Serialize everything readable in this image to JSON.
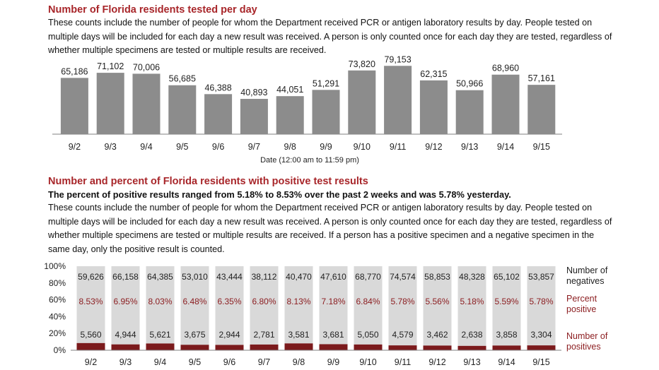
{
  "section1": {
    "title": "Number of Florida residents tested per day",
    "description": "These counts include the number of people for whom the Department received PCR or antigen laboratory results by day. People tested on multiple days will be included for each day a new result was received. A person is only counted once for each day they are tested, regardless of whether multiple specimens are tested or multiple results are received."
  },
  "section2": {
    "title": "Number and percent of Florida residents with positive test results",
    "summary": "The percent of positive results ranged from 5.18% to 8.53% over the past 2 weeks and was 5.78% yesterday.",
    "description": "These counts include the number of people for whom the Department received PCR or antigen laboratory results by day. People tested on multiple days will be included for each day a new result was received. A person is only counted once for each day they are tested, regardless of whether multiple specimens are tested or multiple results are received. If a person has a positive specimen and a negative specimen in the same day, only the positive result is counted."
  },
  "chart_data": [
    {
      "type": "bar",
      "categories": [
        "9/2",
        "9/3",
        "9/4",
        "9/5",
        "9/6",
        "9/7",
        "9/8",
        "9/9",
        "9/10",
        "9/11",
        "9/12",
        "9/13",
        "9/14",
        "9/15"
      ],
      "values": [
        65186,
        71102,
        70006,
        56685,
        46388,
        40893,
        44051,
        51291,
        73820,
        79153,
        62315,
        50966,
        68960,
        57161
      ],
      "value_labels": [
        "65,186",
        "71,102",
        "70,006",
        "56,685",
        "46,388",
        "40,893",
        "44,051",
        "51,291",
        "73,820",
        "79,153",
        "62,315",
        "50,966",
        "68,960",
        "57,161"
      ],
      "xlabel": "Date (12:00 am to 11:59 pm)",
      "ylim": [
        0,
        90000
      ],
      "colors": {
        "bar": "#8c8c8c"
      }
    },
    {
      "type": "bar",
      "stacked": true,
      "percent": true,
      "categories": [
        "9/2",
        "9/3",
        "9/4",
        "9/5",
        "9/6",
        "9/7",
        "9/8",
        "9/9",
        "9/10",
        "9/11",
        "9/12",
        "9/13",
        "9/14",
        "9/15"
      ],
      "yticks": [
        "0%",
        "20%",
        "40%",
        "60%",
        "80%",
        "100%"
      ],
      "ylim": [
        0,
        100
      ],
      "negatives": [
        59626,
        66158,
        64385,
        53010,
        43444,
        38112,
        40470,
        47610,
        68770,
        74574,
        58853,
        48328,
        65102,
        53857
      ],
      "negatives_labels": [
        "59,626",
        "66,158",
        "64,385",
        "53,010",
        "43,444",
        "38,112",
        "40,470",
        "47,610",
        "68,770",
        "74,574",
        "58,853",
        "48,328",
        "65,102",
        "53,857"
      ],
      "percent_positive": [
        8.53,
        6.95,
        8.03,
        6.48,
        6.35,
        6.8,
        8.13,
        7.18,
        6.84,
        5.78,
        5.56,
        5.18,
        5.59,
        5.78
      ],
      "percent_labels": [
        "8.53%",
        "6.95%",
        "8.03%",
        "6.48%",
        "6.35%",
        "6.80%",
        "8.13%",
        "7.18%",
        "6.84%",
        "5.78%",
        "5.56%",
        "5.18%",
        "5.59%",
        "5.78%"
      ],
      "positives": [
        5560,
        4944,
        5621,
        3675,
        2944,
        2781,
        3581,
        3681,
        5050,
        4579,
        3462,
        2638,
        3858,
        3304
      ],
      "positives_labels": [
        "5,560",
        "4,944",
        "5,621",
        "3,675",
        "2,944",
        "2,781",
        "3,581",
        "3,681",
        "5,050",
        "4,579",
        "3,462",
        "2,638",
        "3,858",
        "3,304"
      ],
      "legend": {
        "negatives": [
          "Number of",
          "negatives"
        ],
        "percent": [
          "Percent",
          "positive"
        ],
        "positives": [
          "Number of",
          "positives"
        ]
      },
      "colors": {
        "negative": "#d9d9d9",
        "positive": "#7b1a1c",
        "percent_text": "#8b1c1f",
        "legend_negative": "#222222",
        "legend_red": "#8b1c1f"
      }
    }
  ]
}
